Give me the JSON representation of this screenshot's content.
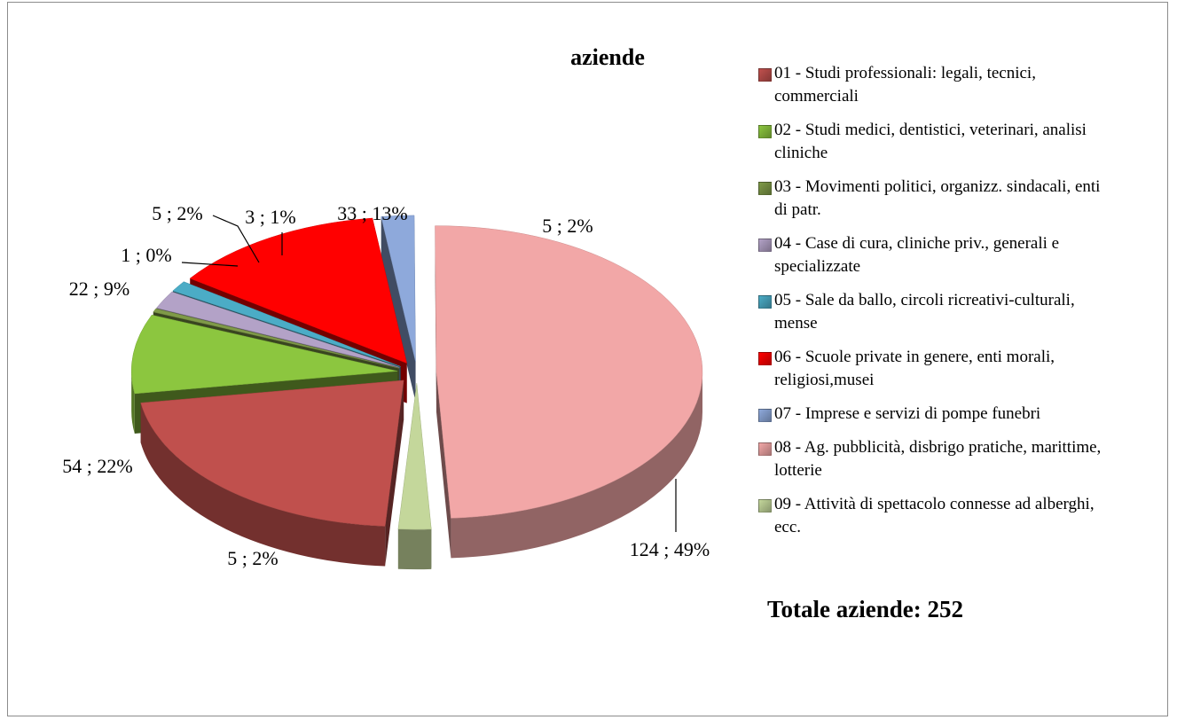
{
  "chart_data": {
    "type": "pie",
    "title": "aziende",
    "categories": [
      "01 - Studi professionali: legali, tecnici, commerciali",
      "02 - Studi medici, dentistici, veterinari, analisi cliniche",
      "03 - Movimenti politici, organizz. sindacali, enti di patr.",
      "04 - Case di cura, cliniche priv., generali e specializzate",
      "05 - Sale da ballo, circoli ricreativi-culturali, mense",
      "06 - Scuole private in genere, enti morali, religiosi,musei",
      "07 - Imprese e servizi di pompe funebri",
      "08 - Ag. pubblicità, disbrigo pratiche, marittime, lotterie",
      "09 - Attività di spettacolo connesse ad alberghi, ecc."
    ],
    "values": [
      54,
      22,
      1,
      5,
      3,
      33,
      5,
      124,
      5
    ],
    "value_labels": [
      "54 ; 22%",
      "22 ; 9%",
      "1 ; 0%",
      "5 ; 2%",
      "3 ; 1%",
      "33 ; 13%",
      "5 ; 2%",
      "124 ; 49%",
      "5 ; 2%"
    ],
    "colors": [
      "#c0504d",
      "#8cc63f",
      "#7f9a48",
      "#b3a2c7",
      "#4bacc6",
      "#ff0000",
      "#8ea9db",
      "#f2a7a7",
      "#c4d79b"
    ],
    "legend": "right",
    "annotation": "Totale aziende: 252"
  }
}
